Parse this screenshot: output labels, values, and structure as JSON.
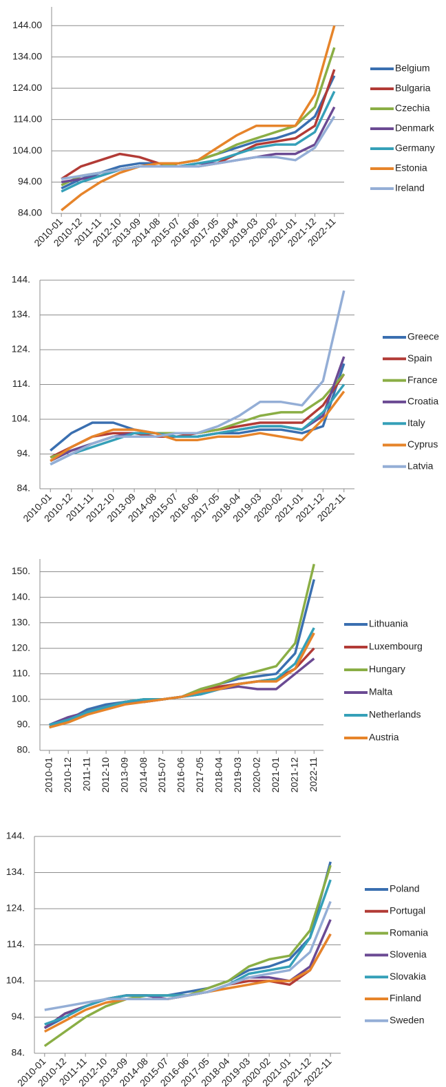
{
  "chart_data": [
    {
      "type": "line",
      "categories": [
        "2010-01",
        "2010-12",
        "2011-11",
        "2012-10",
        "2013-09",
        "2014-08",
        "2015-07",
        "2016-06",
        "2017-05",
        "2018-04",
        "2019-03",
        "2020-02",
        "2021-01",
        "2021-12",
        "2022-11"
      ],
      "ylim": [
        84,
        150
      ],
      "yticks": [
        {
          "value": 84,
          "label": "84.00"
        },
        {
          "value": 94,
          "label": "94.00"
        },
        {
          "value": 104,
          "label": "104.00"
        },
        {
          "value": 114,
          "label": "114.00"
        },
        {
          "value": 124,
          "label": "124.00"
        },
        {
          "value": 134,
          "label": "134.00"
        },
        {
          "value": 144,
          "label": "144.00"
        }
      ],
      "grid": true,
      "series": [
        {
          "name": "Belgium",
          "color": "#3a6fb0",
          "values": [
            92,
            95,
            97,
            99,
            100,
            100,
            100,
            101,
            103,
            105,
            107,
            108,
            110,
            115,
            128
          ]
        },
        {
          "name": "Bulgaria",
          "color": "#b23b36",
          "values": [
            95,
            99,
            101,
            103,
            102,
            100,
            99,
            99,
            100,
            103,
            106,
            107,
            108,
            112,
            130
          ]
        },
        {
          "name": "Czechia",
          "color": "#8aae45",
          "values": [
            93,
            96,
            97,
            98,
            99,
            99,
            100,
            101,
            103,
            106,
            108,
            110,
            112,
            118,
            137
          ]
        },
        {
          "name": "Denmark",
          "color": "#6b4a93",
          "values": [
            94,
            95,
            96,
            98,
            99,
            99,
            99,
            100,
            100,
            101,
            102,
            103,
            103,
            106,
            118
          ]
        },
        {
          "name": "Germany",
          "color": "#35a0b8",
          "values": [
            91,
            94,
            96,
            98,
            99,
            99,
            99,
            100,
            101,
            103,
            105,
            106,
            106,
            110,
            123
          ]
        },
        {
          "name": "Estonia",
          "color": "#e6842a",
          "values": [
            85,
            90,
            94,
            97,
            99,
            100,
            100,
            101,
            105,
            109,
            112,
            112,
            112,
            122,
            144
          ]
        },
        {
          "name": "Ireland",
          "color": "#94aed6",
          "values": [
            95,
            96,
            97,
            98,
            99,
            99,
            99,
            99,
            100,
            101,
            102,
            102,
            101,
            105,
            115
          ]
        }
      ]
    },
    {
      "type": "line",
      "categories": [
        "2010-01",
        "2010-12",
        "2011-11",
        "2012-10",
        "2013-09",
        "2014-08",
        "2015-07",
        "2016-06",
        "2017-05",
        "2018-04",
        "2019-03",
        "2020-02",
        "2021-01",
        "2021-12",
        "2022-11"
      ],
      "ylim": [
        84,
        144
      ],
      "yticks": [
        {
          "value": 84,
          "label": "84."
        },
        {
          "value": 94,
          "label": "94."
        },
        {
          "value": 104,
          "label": "104."
        },
        {
          "value": 114,
          "label": "114."
        },
        {
          "value": 124,
          "label": "124."
        },
        {
          "value": 134,
          "label": "134."
        },
        {
          "value": 144,
          "label": "144."
        }
      ],
      "grid": true,
      "series": [
        {
          "name": "Greece",
          "color": "#3a6fb0",
          "values": [
            95,
            100,
            103,
            103,
            101,
            100,
            99,
            99,
            100,
            100,
            101,
            101,
            100,
            102,
            120
          ]
        },
        {
          "name": "Spain",
          "color": "#b23b36",
          "values": [
            93,
            96,
            99,
            100,
            100,
            99,
            99,
            100,
            101,
            102,
            103,
            103,
            103,
            108,
            117
          ]
        },
        {
          "name": "France",
          "color": "#8aae45",
          "values": [
            93,
            95,
            97,
            99,
            100,
            100,
            100,
            100,
            101,
            103,
            105,
            106,
            106,
            110,
            117
          ]
        },
        {
          "name": "Croatia",
          "color": "#6b4a93",
          "values": [
            92,
            95,
            97,
            99,
            100,
            100,
            99,
            99,
            100,
            101,
            102,
            102,
            101,
            105,
            122
          ]
        },
        {
          "name": "Italy",
          "color": "#35a0b8",
          "values": [
            91,
            94,
            96,
            98,
            100,
            100,
            99,
            99,
            100,
            101,
            102,
            102,
            101,
            106,
            114
          ]
        },
        {
          "name": "Cyprus",
          "color": "#e6842a",
          "values": [
            92,
            96,
            99,
            101,
            101,
            100,
            98,
            98,
            99,
            99,
            100,
            99,
            98,
            104,
            112
          ]
        },
        {
          "name": "Latvia",
          "color": "#94aed6",
          "values": [
            91,
            94,
            97,
            99,
            99,
            99,
            100,
            100,
            102,
            105,
            109,
            109,
            108,
            115,
            141
          ]
        }
      ]
    },
    {
      "type": "line",
      "categories": [
        "2010-01",
        "2010-12",
        "2011-11",
        "2012-10",
        "2013-09",
        "2014-08",
        "2015-07",
        "2016-06",
        "2017-05",
        "2018-04",
        "2019-03",
        "2020-02",
        "2021-01",
        "2021-12",
        "2022-11"
      ],
      "ylim": [
        80,
        155
      ],
      "yticks": [
        {
          "value": 80,
          "label": "80."
        },
        {
          "value": 90,
          "label": "90."
        },
        {
          "value": 100,
          "label": "100."
        },
        {
          "value": 110,
          "label": "110."
        },
        {
          "value": 120,
          "label": "120."
        },
        {
          "value": 130,
          "label": "130."
        },
        {
          "value": 140,
          "label": "140."
        },
        {
          "value": 150,
          "label": "150."
        }
      ],
      "grid": true,
      "series": [
        {
          "name": "Lithuania",
          "color": "#3a6fb0",
          "values": [
            89,
            92,
            96,
            98,
            99,
            100,
            100,
            101,
            104,
            106,
            108,
            109,
            110,
            118,
            147
          ]
        },
        {
          "name": "Luxembourg",
          "color": "#b23b36",
          "values": [
            90,
            92,
            95,
            97,
            99,
            99,
            100,
            101,
            103,
            105,
            106,
            107,
            108,
            112,
            120
          ]
        },
        {
          "name": "Hungary",
          "color": "#8aae45",
          "values": [
            89,
            91,
            94,
            97,
            99,
            100,
            100,
            101,
            104,
            106,
            109,
            111,
            113,
            122,
            153
          ]
        },
        {
          "name": "Malta",
          "color": "#6b4a93",
          "values": [
            90,
            93,
            95,
            97,
            99,
            99,
            100,
            101,
            102,
            104,
            105,
            104,
            104,
            110,
            116
          ]
        },
        {
          "name": "Netherlands",
          "color": "#35a0b8",
          "values": [
            90,
            92,
            95,
            97,
            99,
            100,
            100,
            101,
            102,
            104,
            106,
            107,
            108,
            114,
            128
          ]
        },
        {
          "name": "Austria",
          "color": "#e6842a",
          "values": [
            89,
            91,
            94,
            96,
            98,
            99,
            100,
            101,
            103,
            104,
            106,
            107,
            107,
            112,
            126
          ]
        }
      ]
    },
    {
      "type": "line",
      "categories": [
        "2010-01",
        "2010-12",
        "2011-11",
        "2012-10",
        "2013-09",
        "2014-08",
        "2015-07",
        "2016-06",
        "2017-05",
        "2018-04",
        "2019-03",
        "2020-02",
        "2021-01",
        "2021-12",
        "2022-11"
      ],
      "ylim": [
        84,
        144
      ],
      "yticks": [
        {
          "value": 84,
          "label": "84."
        },
        {
          "value": 94,
          "label": "94."
        },
        {
          "value": 104,
          "label": "104."
        },
        {
          "value": 114,
          "label": "114."
        },
        {
          "value": 124,
          "label": "124."
        },
        {
          "value": 134,
          "label": "134."
        },
        {
          "value": 144,
          "label": "144."
        }
      ],
      "grid": true,
      "series": [
        {
          "name": "Poland",
          "color": "#3a6fb0",
          "values": [
            91,
            94,
            97,
            99,
            100,
            100,
            100,
            101,
            102,
            104,
            107,
            108,
            110,
            116,
            137
          ]
        },
        {
          "name": "Portugal",
          "color": "#b23b36",
          "values": [
            91,
            95,
            97,
            99,
            100,
            100,
            99,
            100,
            101,
            103,
            104,
            104,
            103,
            107,
            117
          ]
        },
        {
          "name": "Romania",
          "color": "#8aae45",
          "values": [
            86,
            90,
            94,
            97,
            99,
            100,
            100,
            100,
            102,
            104,
            108,
            110,
            111,
            118,
            136
          ]
        },
        {
          "name": "Slovenia",
          "color": "#6b4a93",
          "values": [
            91,
            95,
            97,
            99,
            100,
            100,
            99,
            100,
            101,
            103,
            105,
            105,
            104,
            108,
            121
          ]
        },
        {
          "name": "Slovakia",
          "color": "#35a0b8",
          "values": [
            92,
            94,
            97,
            99,
            100,
            100,
            100,
            100,
            101,
            103,
            106,
            107,
            108,
            116,
            132
          ]
        },
        {
          "name": "Finland",
          "color": "#e6842a",
          "values": [
            90,
            93,
            96,
            98,
            99,
            99,
            99,
            100,
            101,
            102,
            103,
            104,
            104,
            107,
            117
          ]
        },
        {
          "name": "Sweden",
          "color": "#94aed6",
          "values": [
            96,
            97,
            98,
            99,
            99,
            99,
            99,
            100,
            101,
            103,
            105,
            106,
            107,
            112,
            126
          ]
        }
      ]
    }
  ]
}
